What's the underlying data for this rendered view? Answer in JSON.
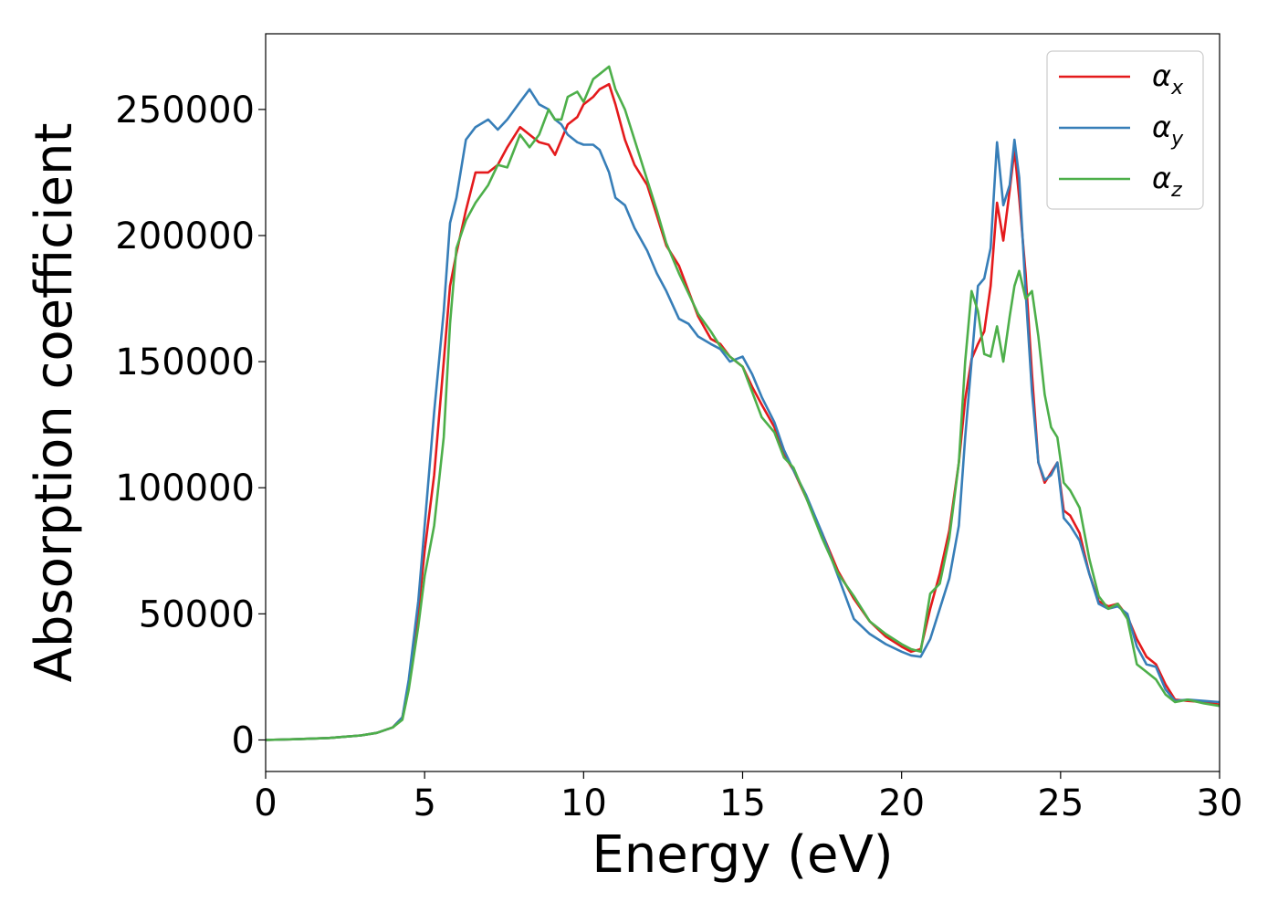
{
  "chart_data": {
    "type": "line",
    "title": "",
    "xlabel": "Energy (eV)",
    "ylabel": "Absorption coefficient",
    "xlim": [
      0,
      30
    ],
    "ylim": [
      -12500,
      280000
    ],
    "xticks": [
      0,
      5,
      10,
      15,
      20,
      25,
      30
    ],
    "xtick_labels": [
      "0",
      "5",
      "10",
      "15",
      "20",
      "25",
      "30"
    ],
    "yticks": [
      0,
      50000,
      100000,
      150000,
      200000,
      250000
    ],
    "ytick_labels": [
      "0",
      "50000",
      "100000",
      "150000",
      "200000",
      "250000"
    ],
    "grid": false,
    "legend_position": "top-right",
    "series": [
      {
        "name": "αx",
        "name_base": "α",
        "name_sub": "x",
        "color": "#e41a1c",
        "x": [
          0,
          1,
          2,
          3,
          3.5,
          4,
          4.3,
          4.5,
          4.8,
          5,
          5.3,
          5.6,
          5.8,
          6,
          6.3,
          6.6,
          7,
          7.3,
          7.6,
          8,
          8.3,
          8.6,
          8.9,
          9.1,
          9.3,
          9.5,
          9.8,
          10,
          10.3,
          10.5,
          10.8,
          11,
          11.3,
          11.6,
          12,
          12.3,
          12.6,
          13,
          13.3,
          13.6,
          14,
          14.3,
          14.6,
          15,
          15.3,
          15.6,
          16,
          16.3,
          16.6,
          17,
          17.5,
          18,
          18.5,
          19,
          19.5,
          20,
          20.3,
          20.6,
          20.9,
          21.2,
          21.5,
          21.8,
          22,
          22.2,
          22.4,
          22.6,
          22.8,
          23,
          23.2,
          23.4,
          23.55,
          23.7,
          23.9,
          24.1,
          24.3,
          24.5,
          24.7,
          24.9,
          25.1,
          25.3,
          25.6,
          25.9,
          26.2,
          26.5,
          26.8,
          27.1,
          27.4,
          27.7,
          28,
          28.3,
          28.6,
          29,
          29.5,
          30
        ],
        "y": [
          0,
          300,
          800,
          1800,
          2800,
          5000,
          9000,
          22000,
          50000,
          75000,
          105000,
          150000,
          180000,
          193000,
          210000,
          225000,
          225000,
          228000,
          235000,
          243000,
          240000,
          237000,
          236000,
          232000,
          238000,
          244000,
          247000,
          252000,
          255000,
          258000,
          260000,
          252000,
          238000,
          228000,
          220000,
          208000,
          196000,
          188000,
          178000,
          168000,
          159000,
          157000,
          152000,
          148000,
          140000,
          133000,
          124000,
          113000,
          107000,
          96000,
          82000,
          67000,
          56000,
          47000,
          41000,
          37000,
          35000,
          36000,
          52000,
          66000,
          83000,
          110000,
          135000,
          151000,
          157000,
          162000,
          180000,
          213000,
          198000,
          218000,
          234000,
          215000,
          185000,
          145000,
          110000,
          102000,
          106000,
          110000,
          91000,
          89000,
          82000,
          66000,
          55000,
          53000,
          54000,
          49000,
          40000,
          33000,
          30000,
          22000,
          16000,
          15500,
          15000,
          14000
        ]
      },
      {
        "name": "αy",
        "name_base": "α",
        "name_sub": "y",
        "color": "#377eb8",
        "x": [
          0,
          1,
          2,
          3,
          3.5,
          4,
          4.3,
          4.5,
          4.8,
          5,
          5.3,
          5.6,
          5.8,
          6,
          6.3,
          6.6,
          7,
          7.3,
          7.6,
          8,
          8.3,
          8.6,
          8.9,
          9.1,
          9.3,
          9.5,
          9.8,
          10,
          10.3,
          10.5,
          10.8,
          11,
          11.3,
          11.6,
          12,
          12.3,
          12.6,
          13,
          13.3,
          13.6,
          14,
          14.3,
          14.6,
          15,
          15.3,
          15.6,
          16,
          16.3,
          16.6,
          17,
          17.5,
          18,
          18.5,
          19,
          19.5,
          20,
          20.3,
          20.6,
          20.9,
          21.2,
          21.5,
          21.8,
          22,
          22.2,
          22.4,
          22.6,
          22.8,
          23,
          23.2,
          23.4,
          23.55,
          23.7,
          23.9,
          24.1,
          24.3,
          24.5,
          24.7,
          24.9,
          25.1,
          25.3,
          25.6,
          25.9,
          26.2,
          26.5,
          26.8,
          27.1,
          27.4,
          27.7,
          28,
          28.3,
          28.6,
          29,
          29.5,
          30
        ],
        "y": [
          0,
          300,
          800,
          1800,
          2800,
          5000,
          9000,
          24000,
          55000,
          85000,
          130000,
          170000,
          205000,
          215000,
          238000,
          243000,
          246000,
          242000,
          246000,
          253000,
          258000,
          252000,
          250000,
          246000,
          244000,
          240000,
          237000,
          236000,
          236000,
          234000,
          225000,
          215000,
          212000,
          203000,
          194000,
          185000,
          178000,
          167000,
          165000,
          160000,
          157000,
          155000,
          150000,
          152000,
          145000,
          136000,
          126000,
          115000,
          107000,
          97000,
          82000,
          65000,
          48000,
          42000,
          38000,
          35000,
          33500,
          33000,
          40000,
          52000,
          64000,
          85000,
          120000,
          150000,
          180000,
          183000,
          195000,
          237000,
          212000,
          220000,
          238000,
          223000,
          178000,
          138000,
          110000,
          103000,
          105000,
          110000,
          88000,
          85000,
          79000,
          66000,
          54000,
          52000,
          53000,
          50000,
          37000,
          30000,
          29000,
          20000,
          15500,
          16000,
          15500,
          15000
        ]
      },
      {
        "name": "αz",
        "name_base": "α",
        "name_sub": "z",
        "color": "#4daf4a",
        "x": [
          0,
          1,
          2,
          3,
          3.5,
          4,
          4.3,
          4.5,
          4.8,
          5,
          5.3,
          5.6,
          5.8,
          6,
          6.3,
          6.6,
          7,
          7.3,
          7.6,
          8,
          8.3,
          8.6,
          8.9,
          9.1,
          9.3,
          9.5,
          9.8,
          10,
          10.3,
          10.5,
          10.8,
          11,
          11.3,
          11.6,
          12,
          12.3,
          12.6,
          13,
          13.3,
          13.6,
          14,
          14.3,
          14.6,
          15,
          15.3,
          15.6,
          16,
          16.3,
          16.6,
          17,
          17.5,
          18,
          18.5,
          19,
          19.5,
          20,
          20.3,
          20.6,
          20.9,
          21.2,
          21.5,
          21.8,
          22,
          22.2,
          22.4,
          22.6,
          22.8,
          23,
          23.2,
          23.4,
          23.55,
          23.7,
          23.9,
          24.1,
          24.3,
          24.5,
          24.7,
          24.9,
          25.1,
          25.3,
          25.6,
          25.9,
          26.2,
          26.5,
          26.8,
          27.1,
          27.4,
          27.7,
          28,
          28.3,
          28.6,
          29,
          29.5,
          30
        ],
        "y": [
          0,
          300,
          800,
          1800,
          2800,
          5000,
          8000,
          20000,
          45000,
          65000,
          85000,
          120000,
          165000,
          195000,
          206000,
          213000,
          220000,
          228000,
          227000,
          240000,
          235000,
          240000,
          250000,
          246000,
          246000,
          255000,
          257000,
          253000,
          262000,
          264000,
          267000,
          258000,
          250000,
          238000,
          222000,
          210000,
          197000,
          185000,
          177000,
          169000,
          162000,
          156000,
          152000,
          148000,
          138000,
          128000,
          122000,
          112000,
          108000,
          96000,
          80000,
          66000,
          57000,
          47000,
          42000,
          38000,
          36000,
          35000,
          58000,
          62000,
          80000,
          110000,
          150000,
          178000,
          170000,
          153000,
          152000,
          164000,
          150000,
          168000,
          180000,
          186000,
          175000,
          178000,
          160000,
          137000,
          124000,
          120000,
          102000,
          99000,
          92000,
          72000,
          57000,
          52000,
          54000,
          48000,
          30000,
          27000,
          24000,
          18000,
          15000,
          16000,
          14500,
          13500
        ]
      }
    ]
  }
}
